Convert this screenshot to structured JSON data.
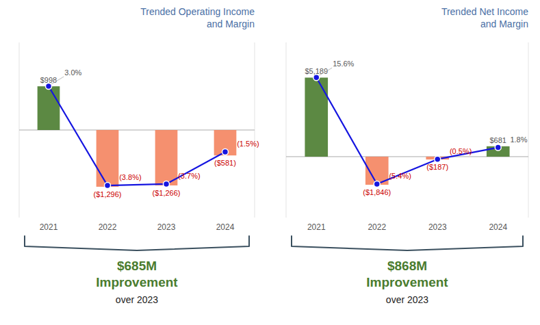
{
  "chart_data": [
    {
      "type": "bar",
      "title": "Trended Operating Income\nand Margin",
      "categories": [
        "2021",
        "2022",
        "2023",
        "2024"
      ],
      "series": [
        {
          "type": "bar",
          "colors": [
            "#4a7c2f",
            "#f4845f",
            "#f4845f",
            "#f4845f"
          ],
          "values": [
            998,
            -1296,
            -1266,
            -581
          ],
          "value_labels": [
            "$998",
            "($1,296)",
            "($1,266)",
            "($581)"
          ]
        },
        {
          "type": "line",
          "axis": "y2",
          "color": "#1515e0",
          "marker": "circle",
          "values": [
            3.0,
            -3.8,
            -3.7,
            -1.5
          ],
          "value_labels": [
            "3.0%",
            "(3.8%)",
            "(3.7%)",
            "(1.5%)"
          ]
        }
      ],
      "ylim": [
        -2000,
        2000
      ],
      "y2lim": [
        -6,
        6
      ],
      "tick_labels": "x",
      "data_labels": true,
      "annotations": [
        "$685M",
        "Improvement",
        "over 2023"
      ]
    },
    {
      "type": "bar",
      "title": "Trended Net Income\nand Margin",
      "categories": [
        "2021",
        "2022",
        "2023",
        "2024"
      ],
      "series": [
        {
          "type": "bar",
          "colors": [
            "#4a7c2f",
            "#f4845f",
            "#f4845f",
            "#4a7c2f"
          ],
          "values": [
            5189,
            -1846,
            -187,
            681
          ],
          "value_labels": [
            "$5,189",
            "($1,846)",
            "($187)",
            "$681"
          ]
        },
        {
          "type": "line",
          "axis": "y2",
          "color": "#1515e0",
          "marker": "circle",
          "values": [
            15.6,
            -5.4,
            -0.5,
            1.8
          ],
          "value_labels": [
            "15.6%",
            "(5.4%)",
            "(0.5%)",
            "1.8%"
          ]
        }
      ],
      "ylim": [
        -4000,
        7500
      ],
      "y2lim": [
        -12,
        22.5
      ],
      "tick_labels": "x",
      "data_labels": true,
      "annotations": [
        "$868M",
        "Improvement",
        "over 2023"
      ]
    }
  ]
}
